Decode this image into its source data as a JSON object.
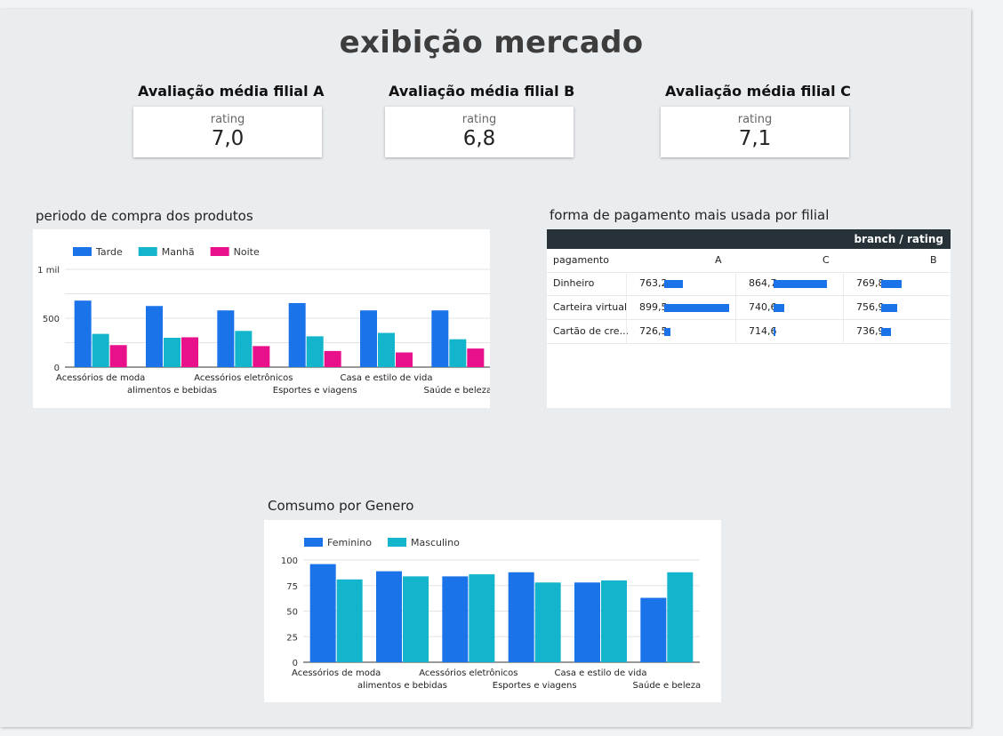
{
  "page": {
    "title": "exibição mercado"
  },
  "kpis": [
    {
      "heading": "Avaliação média filial A",
      "label": "rating",
      "value": "7,0"
    },
    {
      "heading": "Avaliação média filial B",
      "label": "rating",
      "value": "6,8"
    },
    {
      "heading": "Avaliação média filial C",
      "label": "rating",
      "value": "7,1"
    }
  ],
  "colors": {
    "blue": "#1a73e8",
    "teal": "#12b5cb",
    "pink": "#e8108b",
    "table_header": "#263238"
  },
  "periodo": {
    "section_title": "periodo de compra dos produtos",
    "chart_data": {
      "type": "bar",
      "title": "periodo de compra dos produtos",
      "categories": [
        "Acessórios de moda",
        "alimentos e bebidas",
        "Acessórios eletrônicos",
        "Esportes e viagens",
        "Casa e estilo de vida",
        "Saúde e beleza"
      ],
      "series": [
        {
          "name": "Tarde",
          "values": [
            680,
            625,
            580,
            655,
            580,
            580
          ]
        },
        {
          "name": "Manhã",
          "values": [
            340,
            300,
            370,
            315,
            350,
            285
          ]
        },
        {
          "name": "Noite",
          "values": [
            225,
            305,
            215,
            165,
            150,
            190
          ]
        }
      ],
      "y_ticks": [
        {
          "v": 0,
          "label": "0"
        },
        {
          "v": 500,
          "label": "500"
        },
        {
          "v": 1000,
          "label": "1 mil"
        }
      ],
      "ylim": [
        0,
        1000
      ],
      "legend": "top-left"
    }
  },
  "pagamento": {
    "section_title": "forma de pagamento mais usada por filial",
    "header": "branch / rating",
    "columns": [
      "pagamento",
      "A",
      "C",
      "B"
    ],
    "rows": [
      {
        "label": "Dinheiro",
        "values": [
          763.2,
          864.7,
          769.8
        ],
        "display": [
          "763,2",
          "864,7",
          "769,8"
        ]
      },
      {
        "label": "Carteira virtual",
        "values": [
          899.5,
          740.6,
          756.9
        ],
        "display": [
          "899,5",
          "740,6",
          "756,9"
        ]
      },
      {
        "label": "Cartão de cre...",
        "values": [
          726.5,
          714.6,
          736.9
        ],
        "display": [
          "726,5",
          "714,6",
          "736,9"
        ]
      }
    ]
  },
  "genero": {
    "section_title": "Comsumo por Genero",
    "chart_data": {
      "type": "bar",
      "title": "Comsumo por Genero",
      "categories": [
        "Acessórios de moda",
        "alimentos e bebidas",
        "Acessórios eletrônicos",
        "Esportes e viagens",
        "Casa e estilo de vida",
        "Saúde e beleza"
      ],
      "series": [
        {
          "name": "Feminino",
          "values": [
            96,
            89,
            84,
            88,
            78,
            63
          ]
        },
        {
          "name": "Masculino",
          "values": [
            81,
            84,
            86,
            78,
            80,
            88
          ]
        }
      ],
      "y_ticks": [
        {
          "v": 0,
          "label": "0"
        },
        {
          "v": 25,
          "label": "25"
        },
        {
          "v": 50,
          "label": "50"
        },
        {
          "v": 75,
          "label": "75"
        },
        {
          "v": 100,
          "label": "100"
        }
      ],
      "ylim": [
        0,
        100
      ],
      "legend": "top-left"
    }
  }
}
